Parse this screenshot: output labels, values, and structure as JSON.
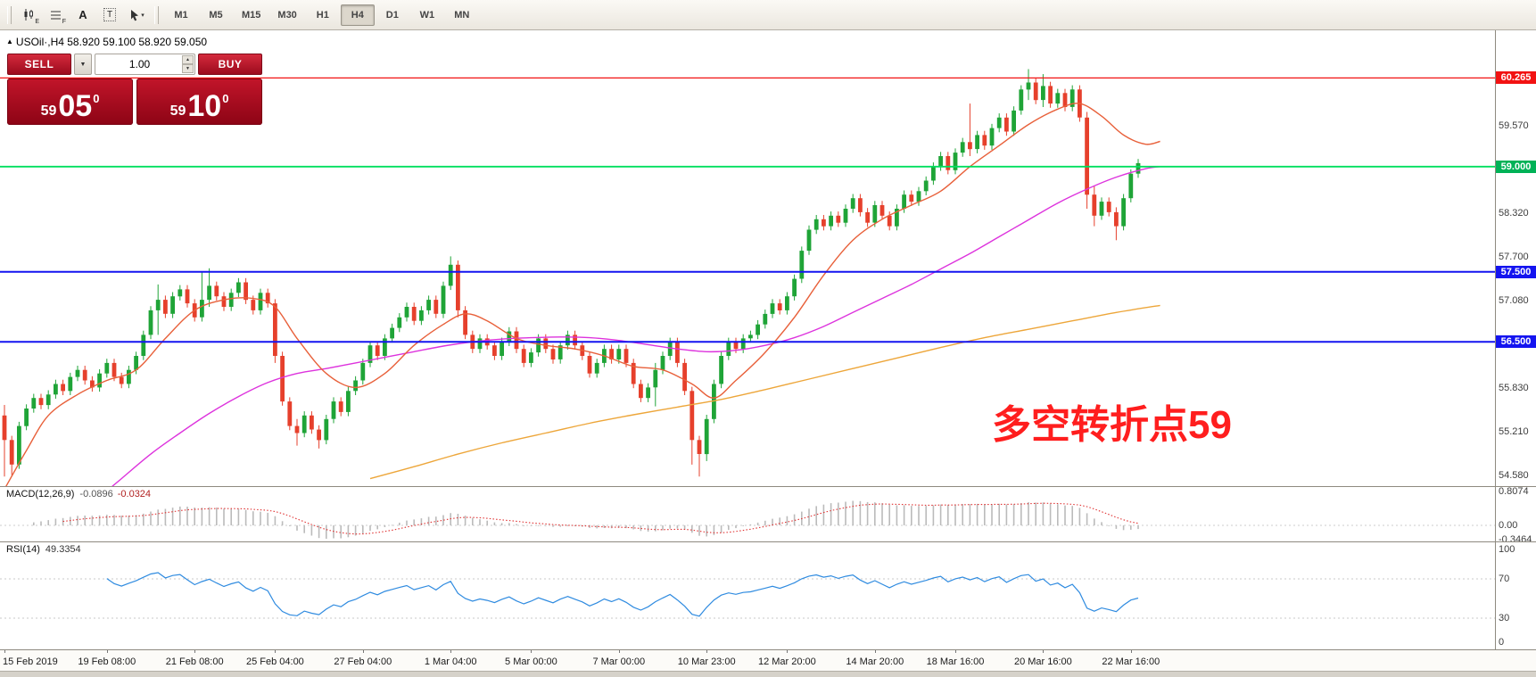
{
  "toolbar": {
    "tools": [
      {
        "id": "chart-template-e",
        "label": "E"
      },
      {
        "id": "chart-template-f",
        "label": "F"
      },
      {
        "id": "text-a",
        "label": "A"
      },
      {
        "id": "text-box",
        "label": "T"
      },
      {
        "id": "cursor",
        "label": "▾"
      }
    ],
    "timeframes": [
      "M1",
      "M5",
      "M15",
      "M30",
      "H1",
      "H4",
      "D1",
      "W1",
      "MN"
    ],
    "active_timeframe": "H4"
  },
  "header": {
    "arrow": "▲",
    "symbol_header": "USOil·,H4  58.920 59.100 58.920 59.050"
  },
  "trade": {
    "sell_label": "SELL",
    "buy_label": "BUY",
    "caret": "▼",
    "spin_up": "▲",
    "spin_down": "▼",
    "volume": "1.00",
    "sell_price": {
      "prefix": "59",
      "big": "05",
      "pips": "0"
    },
    "buy_price": {
      "prefix": "59",
      "big": "10",
      "pips": "0"
    }
  },
  "annotation": {
    "text": "多空转折点59",
    "color": "#ff1e1e"
  },
  "macd": {
    "name": "MACD(12,26,9)",
    "value_main": "-0.0896",
    "value_signal": "-0.0324"
  },
  "rsi": {
    "name": "RSI(14)",
    "value": "49.3354"
  },
  "chart_data": {
    "type": "candlestick",
    "symbol": "USOil",
    "timeframe": "H4",
    "last_ohlc": {
      "open": 58.92,
      "high": 59.1,
      "low": 58.92,
      "close": 59.05
    },
    "first_open": 55.45,
    "closes": [
      55.1,
      54.75,
      55.3,
      55.55,
      55.7,
      55.6,
      55.75,
      55.9,
      55.8,
      56.0,
      56.1,
      55.95,
      55.85,
      56.05,
      56.2,
      56.0,
      55.9,
      56.1,
      56.3,
      56.6,
      56.95,
      57.1,
      56.9,
      57.15,
      57.25,
      57.05,
      56.85,
      57.1,
      57.3,
      57.15,
      57.0,
      57.2,
      57.35,
      57.1,
      56.95,
      57.2,
      57.05,
      56.3,
      55.65,
      55.3,
      55.2,
      55.45,
      55.25,
      55.1,
      55.4,
      55.65,
      55.5,
      55.8,
      55.95,
      56.2,
      56.45,
      56.3,
      56.55,
      56.7,
      56.85,
      57.0,
      56.8,
      56.95,
      57.1,
      56.9,
      57.3,
      57.6,
      56.95,
      56.6,
      56.4,
      56.55,
      56.45,
      56.3,
      56.5,
      56.65,
      56.4,
      56.2,
      56.35,
      56.55,
      56.4,
      56.25,
      56.45,
      56.6,
      56.45,
      56.3,
      56.05,
      56.2,
      56.4,
      56.25,
      56.4,
      56.2,
      55.9,
      55.7,
      55.85,
      56.1,
      56.3,
      56.5,
      56.2,
      55.8,
      55.1,
      54.9,
      55.4,
      55.9,
      56.3,
      56.5,
      56.4,
      56.55,
      56.6,
      56.75,
      56.9,
      57.05,
      56.95,
      57.15,
      57.4,
      57.8,
      58.1,
      58.25,
      58.15,
      58.3,
      58.2,
      58.4,
      58.55,
      58.35,
      58.2,
      58.45,
      58.3,
      58.15,
      58.4,
      58.6,
      58.5,
      58.65,
      58.8,
      59.0,
      59.15,
      58.95,
      59.2,
      59.35,
      59.25,
      59.45,
      59.3,
      59.55,
      59.7,
      59.5,
      59.8,
      60.1,
      60.2,
      59.95,
      60.15,
      59.9,
      60.05,
      59.85,
      60.1,
      59.7,
      58.6,
      58.3,
      58.5,
      58.35,
      58.15,
      58.55,
      58.9,
      59.05
    ],
    "wicks": {
      "0": [
        55.6,
        54.58
      ],
      "1": [
        55.15,
        54.6
      ],
      "21": [
        57.32,
        56.6
      ],
      "27": [
        57.5,
        56.8
      ],
      "28": [
        57.55,
        57.0
      ],
      "37": [
        57.1,
        56.2
      ],
      "40": [
        55.4,
        55.02
      ],
      "43": [
        55.3,
        54.98
      ],
      "61": [
        57.72,
        57.25
      ],
      "62": [
        57.62,
        56.85
      ],
      "89": [
        56.2,
        55.58
      ],
      "94": [
        55.85,
        54.75
      ],
      "95": [
        55.15,
        54.58
      ],
      "96": [
        55.45,
        54.8
      ],
      "132": [
        59.9,
        59.15
      ],
      "140": [
        60.39,
        59.95
      ],
      "142": [
        60.32,
        59.85
      ],
      "148": [
        59.78,
        58.4
      ],
      "149": [
        58.72,
        58.15
      ],
      "152": [
        58.42,
        57.95
      ],
      "155": [
        59.1,
        58.85
      ]
    },
    "colors": {
      "up": "#1fa437",
      "down": "#e6402c"
    },
    "ma_fast": {
      "color": "#e8603a",
      "points": [
        [
          0,
          54.4
        ],
        [
          3,
          54.95
        ],
        [
          6,
          55.45
        ],
        [
          10,
          55.75
        ],
        [
          14,
          55.95
        ],
        [
          18,
          56.1
        ],
        [
          22,
          56.55
        ],
        [
          26,
          56.95
        ],
        [
          30,
          57.1
        ],
        [
          34,
          57.12
        ],
        [
          37,
          57.0
        ],
        [
          40,
          56.55
        ],
        [
          44,
          56.05
        ],
        [
          48,
          55.85
        ],
        [
          52,
          56.05
        ],
        [
          56,
          56.45
        ],
        [
          60,
          56.75
        ],
        [
          63,
          56.9
        ],
        [
          66,
          56.8
        ],
        [
          70,
          56.55
        ],
        [
          74,
          56.45
        ],
        [
          78,
          56.4
        ],
        [
          82,
          56.3
        ],
        [
          86,
          56.15
        ],
        [
          90,
          56.1
        ],
        [
          94,
          55.9
        ],
        [
          97,
          55.7
        ],
        [
          100,
          55.95
        ],
        [
          104,
          56.35
        ],
        [
          108,
          56.85
        ],
        [
          112,
          57.45
        ],
        [
          116,
          57.95
        ],
        [
          120,
          58.25
        ],
        [
          124,
          58.45
        ],
        [
          128,
          58.65
        ],
        [
          132,
          59.0
        ],
        [
          136,
          59.3
        ],
        [
          140,
          59.6
        ],
        [
          144,
          59.82
        ],
        [
          147,
          59.9
        ],
        [
          150,
          59.72
        ],
        [
          153,
          59.45
        ],
        [
          156,
          59.32
        ],
        [
          158,
          59.36
        ]
      ]
    },
    "ma_mid": {
      "color": "#dd33dd",
      "points": [
        [
          12,
          54.2
        ],
        [
          16,
          54.55
        ],
        [
          20,
          54.9
        ],
        [
          24,
          55.2
        ],
        [
          28,
          55.48
        ],
        [
          32,
          55.72
        ],
        [
          36,
          55.92
        ],
        [
          40,
          56.05
        ],
        [
          44,
          56.12
        ],
        [
          48,
          56.2
        ],
        [
          52,
          56.28
        ],
        [
          56,
          56.36
        ],
        [
          60,
          56.44
        ],
        [
          64,
          56.5
        ],
        [
          68,
          56.54
        ],
        [
          72,
          56.56
        ],
        [
          76,
          56.57
        ],
        [
          80,
          56.56
        ],
        [
          84,
          56.52
        ],
        [
          88,
          56.46
        ],
        [
          92,
          56.4
        ],
        [
          96,
          56.36
        ],
        [
          100,
          56.38
        ],
        [
          104,
          56.45
        ],
        [
          108,
          56.56
        ],
        [
          112,
          56.72
        ],
        [
          116,
          56.92
        ],
        [
          120,
          57.12
        ],
        [
          124,
          57.32
        ],
        [
          128,
          57.54
        ],
        [
          132,
          57.76
        ],
        [
          136,
          58.0
        ],
        [
          140,
          58.24
        ],
        [
          144,
          58.48
        ],
        [
          148,
          58.68
        ],
        [
          152,
          58.85
        ],
        [
          156,
          58.97
        ],
        [
          158,
          59.0
        ]
      ]
    },
    "ma_slow": {
      "color": "#eda63a",
      "points": [
        [
          50,
          54.55
        ],
        [
          56,
          54.72
        ],
        [
          62,
          54.9
        ],
        [
          68,
          55.06
        ],
        [
          74,
          55.2
        ],
        [
          80,
          55.34
        ],
        [
          86,
          55.46
        ],
        [
          92,
          55.57
        ],
        [
          98,
          55.68
        ],
        [
          104,
          55.82
        ],
        [
          110,
          55.97
        ],
        [
          116,
          56.12
        ],
        [
          122,
          56.27
        ],
        [
          128,
          56.42
        ],
        [
          134,
          56.56
        ],
        [
          140,
          56.68
        ],
        [
          146,
          56.8
        ],
        [
          152,
          56.92
        ],
        [
          158,
          57.02
        ]
      ]
    },
    "price_lines": [
      {
        "price": 60.265,
        "label": "60.265",
        "color": "#f21212",
        "badge": "#f21212",
        "width": 1.2
      },
      {
        "price": 59.0,
        "label": "59.000",
        "color": "#00df5f",
        "badge": "#00b257",
        "width": 1.8
      },
      {
        "price": 57.5,
        "label": "57.500",
        "color": "#1414f0",
        "badge": "#1414f0",
        "width": 2
      },
      {
        "price": 56.5,
        "label": "56.500",
        "color": "#1414f0",
        "badge": "#1414f0",
        "width": 2
      }
    ],
    "price_ticks": [
      {
        "price": 59.57,
        "label": "59.570"
      },
      {
        "price": 58.32,
        "label": "58.320"
      },
      {
        "price": 57.7,
        "label": "57.700"
      },
      {
        "price": 57.08,
        "label": "57.080"
      },
      {
        "price": 55.83,
        "label": "55.830"
      },
      {
        "price": 55.21,
        "label": "55.210"
      },
      {
        "price": 54.58,
        "label": "54.580"
      }
    ],
    "time_labels": [
      {
        "idx": 0,
        "label": "15 Feb 2019"
      },
      {
        "idx": 14,
        "label": "19 Feb 08:00"
      },
      {
        "idx": 26,
        "label": "21 Feb 08:00"
      },
      {
        "idx": 37,
        "label": "25 Feb 04:00"
      },
      {
        "idx": 49,
        "label": "27 Feb 04:00"
      },
      {
        "idx": 61,
        "label": "1 Mar 04:00"
      },
      {
        "idx": 72,
        "label": "5 Mar 00:00"
      },
      {
        "idx": 84,
        "label": "7 Mar 00:00"
      },
      {
        "idx": 96,
        "label": "10 Mar 23:00"
      },
      {
        "idx": 107,
        "label": "12 Mar 20:00"
      },
      {
        "idx": 119,
        "label": "14 Mar 20:00"
      },
      {
        "idx": 130,
        "label": "18 Mar 16:00"
      },
      {
        "idx": 142,
        "label": "20 Mar 16:00"
      },
      {
        "idx": 154,
        "label": "22 Mar 16:00"
      }
    ],
    "macd_axis": [
      {
        "v": 0.8074,
        "label": "0.8074"
      },
      {
        "v": 0,
        "label": "0.00"
      },
      {
        "v": -0.3464,
        "label": "-0.3464"
      }
    ],
    "rsi_axis": [
      {
        "v": 100,
        "label": "100"
      },
      {
        "v": 70,
        "label": "70"
      },
      {
        "v": 30,
        "label": "30"
      },
      {
        "v": 0,
        "label": "0"
      }
    ],
    "rsi_levels": [
      70,
      30
    ],
    "indicator_colors": {
      "macd_hist": "#bbbbbb",
      "macd_signal": "#e03333",
      "rsi": "#2f8be0"
    }
  }
}
